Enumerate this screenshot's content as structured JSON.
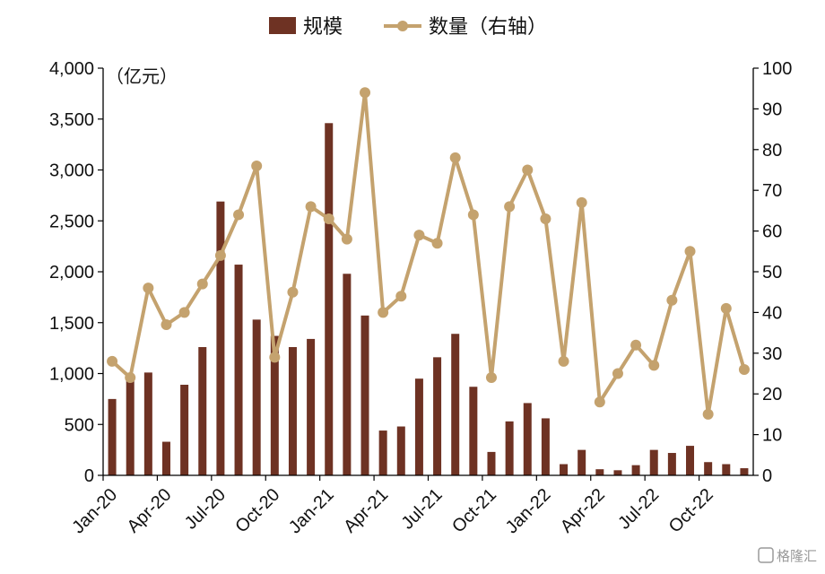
{
  "chart_data": {
    "type": "bar",
    "title": "",
    "left_axis_unit_label": "（亿元）",
    "ylim_left": [
      0,
      4000
    ],
    "ylim_right": [
      0,
      100
    ],
    "left_ticks": [
      "0",
      "500",
      "1,000",
      "1,500",
      "2,000",
      "2,500",
      "3,000",
      "3,500",
      "4,000"
    ],
    "right_ticks": [
      "0",
      "10",
      "20",
      "30",
      "40",
      "50",
      "60",
      "70",
      "80",
      "90",
      "100"
    ],
    "x_tick_labels": [
      "Jan-20",
      "Apr-20",
      "Jul-20",
      "Oct-20",
      "Jan-21",
      "Apr-21",
      "Jul-21",
      "Oct-21",
      "Jan-22",
      "Apr-22",
      "Jul-22",
      "Oct-22"
    ],
    "categories": [
      "2020-01",
      "2020-02",
      "2020-03",
      "2020-04",
      "2020-05",
      "2020-06",
      "2020-07",
      "2020-08",
      "2020-09",
      "2020-10",
      "2020-11",
      "2020-12",
      "2021-01",
      "2021-02",
      "2021-03",
      "2021-04",
      "2021-05",
      "2021-06",
      "2021-07",
      "2021-08",
      "2021-09",
      "2021-10",
      "2021-11",
      "2021-12",
      "2022-01",
      "2022-02",
      "2022-03",
      "2022-04",
      "2022-05",
      "2022-06",
      "2022-07",
      "2022-08",
      "2022-09",
      "2022-10",
      "2022-11",
      "2022-12"
    ],
    "legend_position": "top-center",
    "grid": false,
    "series": [
      {
        "name": "规模",
        "type": "bar",
        "axis": "left",
        "color": "#6e3223",
        "values": [
          750,
          960,
          1010,
          330,
          890,
          1260,
          2690,
          2070,
          1530,
          1370,
          1260,
          1340,
          3460,
          1980,
          1570,
          440,
          480,
          950,
          1160,
          1390,
          870,
          230,
          530,
          710,
          560,
          110,
          250,
          60,
          50,
          100,
          250,
          220,
          290,
          130,
          110,
          70
        ]
      },
      {
        "name": "数量（右轴）",
        "type": "line",
        "axis": "right",
        "color": "#c4a26e",
        "values": [
          28,
          24,
          46,
          37,
          40,
          47,
          54,
          64,
          76,
          29,
          45,
          66,
          63,
          58,
          94,
          40,
          44,
          59,
          57,
          78,
          64,
          24,
          66,
          75,
          63,
          28,
          67,
          18,
          25,
          32,
          27,
          43,
          55,
          15,
          41,
          26
        ]
      }
    ]
  },
  "watermark": "格隆汇"
}
